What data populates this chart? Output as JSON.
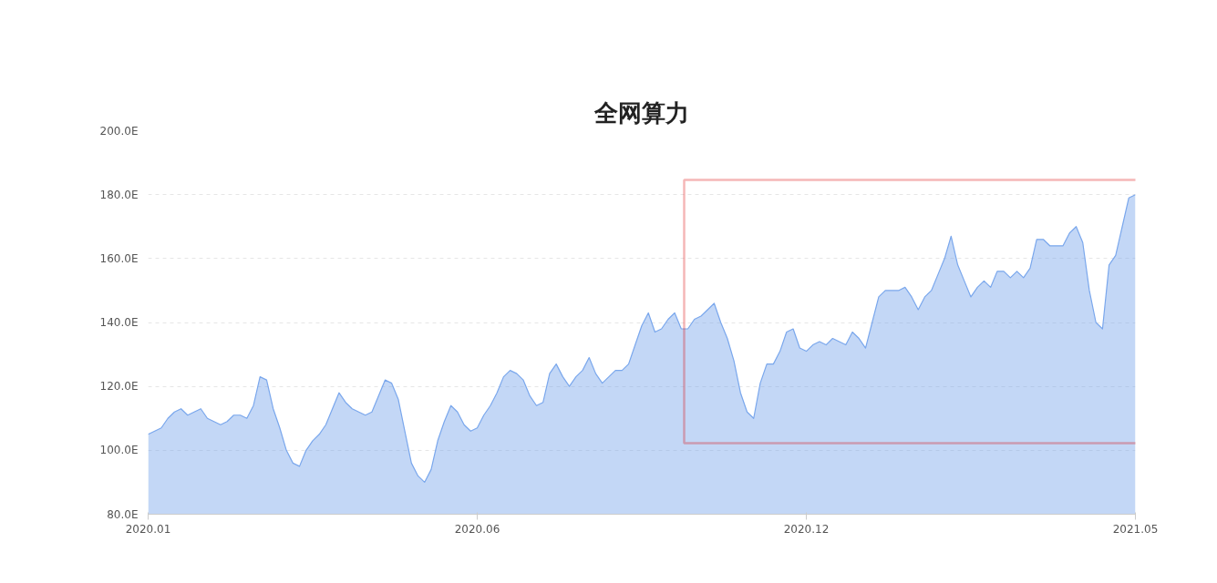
{
  "chart_data": {
    "type": "area",
    "title": "全网算力",
    "categories": [
      "2020.01",
      null,
      null,
      null,
      null,
      null,
      null,
      null,
      null,
      null,
      null,
      null,
      null,
      null,
      null,
      null,
      null,
      null,
      null,
      null,
      null,
      null,
      null,
      null,
      null,
      null,
      null,
      null,
      null,
      null,
      null,
      null,
      null,
      null,
      null,
      null,
      null,
      null,
      null,
      null,
      null,
      null,
      null,
      null,
      null,
      null,
      null,
      null,
      null,
      null,
      "2020.06",
      null,
      null,
      null,
      null,
      null,
      null,
      null,
      null,
      null,
      null,
      null,
      null,
      null,
      null,
      null,
      null,
      null,
      null,
      null,
      null,
      null,
      null,
      null,
      null,
      null,
      null,
      null,
      null,
      null,
      null,
      null,
      null,
      null,
      null,
      null,
      null,
      null,
      null,
      null,
      null,
      null,
      null,
      null,
      null,
      null,
      null,
      null,
      null,
      null,
      "2020.12",
      null,
      null,
      null,
      null,
      null,
      null,
      null,
      null,
      null,
      null,
      null,
      null,
      null,
      null,
      null,
      null,
      null,
      null,
      null,
      null,
      null,
      null,
      null,
      null,
      null,
      null,
      null,
      null,
      null,
      null,
      null,
      null,
      null,
      null,
      null,
      null,
      null,
      null,
      null,
      null,
      null,
      null,
      null,
      null,
      null,
      null,
      null,
      null,
      null,
      "2021.05"
    ],
    "series": [
      {
        "color": "#7aa7ec",
        "values": [
          105,
          106,
          107,
          110,
          112,
          113,
          111,
          112,
          113,
          110,
          109,
          108,
          109,
          111,
          111,
          110,
          114,
          123,
          122,
          113,
          107,
          100,
          96,
          95,
          100,
          103,
          105,
          108,
          113,
          118,
          115,
          113,
          112,
          111,
          112,
          117,
          122,
          121,
          116,
          106,
          96,
          92,
          90,
          94,
          103,
          109,
          114,
          112,
          108,
          106,
          107,
          111,
          114,
          118,
          123,
          125,
          124,
          122,
          117,
          114,
          115,
          124,
          127,
          123,
          120,
          123,
          125,
          129,
          124,
          121,
          123,
          125,
          125,
          127,
          133,
          139,
          143,
          137,
          138,
          141,
          143,
          138,
          138,
          141,
          142,
          144,
          146,
          140,
          135,
          128,
          118,
          112,
          110,
          121,
          127,
          127,
          131,
          137,
          138,
          132,
          131,
          133,
          134,
          133,
          135,
          134,
          133,
          137,
          135,
          132,
          140,
          148,
          150,
          150,
          150,
          151,
          148,
          144,
          148,
          150,
          155,
          160,
          167,
          158,
          153,
          148,
          151,
          153,
          151,
          156,
          156,
          154,
          156,
          154,
          157,
          166,
          166,
          164,
          164,
          164,
          168,
          170,
          165,
          150,
          140,
          138,
          158,
          161,
          170,
          179,
          180
        ]
      }
    ],
    "ylim": [
      80,
      200
    ],
    "yticks": [
      {
        "value": 80,
        "label": "80.0E"
      },
      {
        "value": 100,
        "label": "100.0E"
      },
      {
        "value": 120,
        "label": "120.0E"
      },
      {
        "value": 140,
        "label": "140.0E"
      },
      {
        "value": 160,
        "label": "160.0E"
      },
      {
        "value": 180,
        "label": "180.0E"
      },
      {
        "value": 200,
        "label": "200.0E"
      }
    ],
    "grid": "y"
  }
}
